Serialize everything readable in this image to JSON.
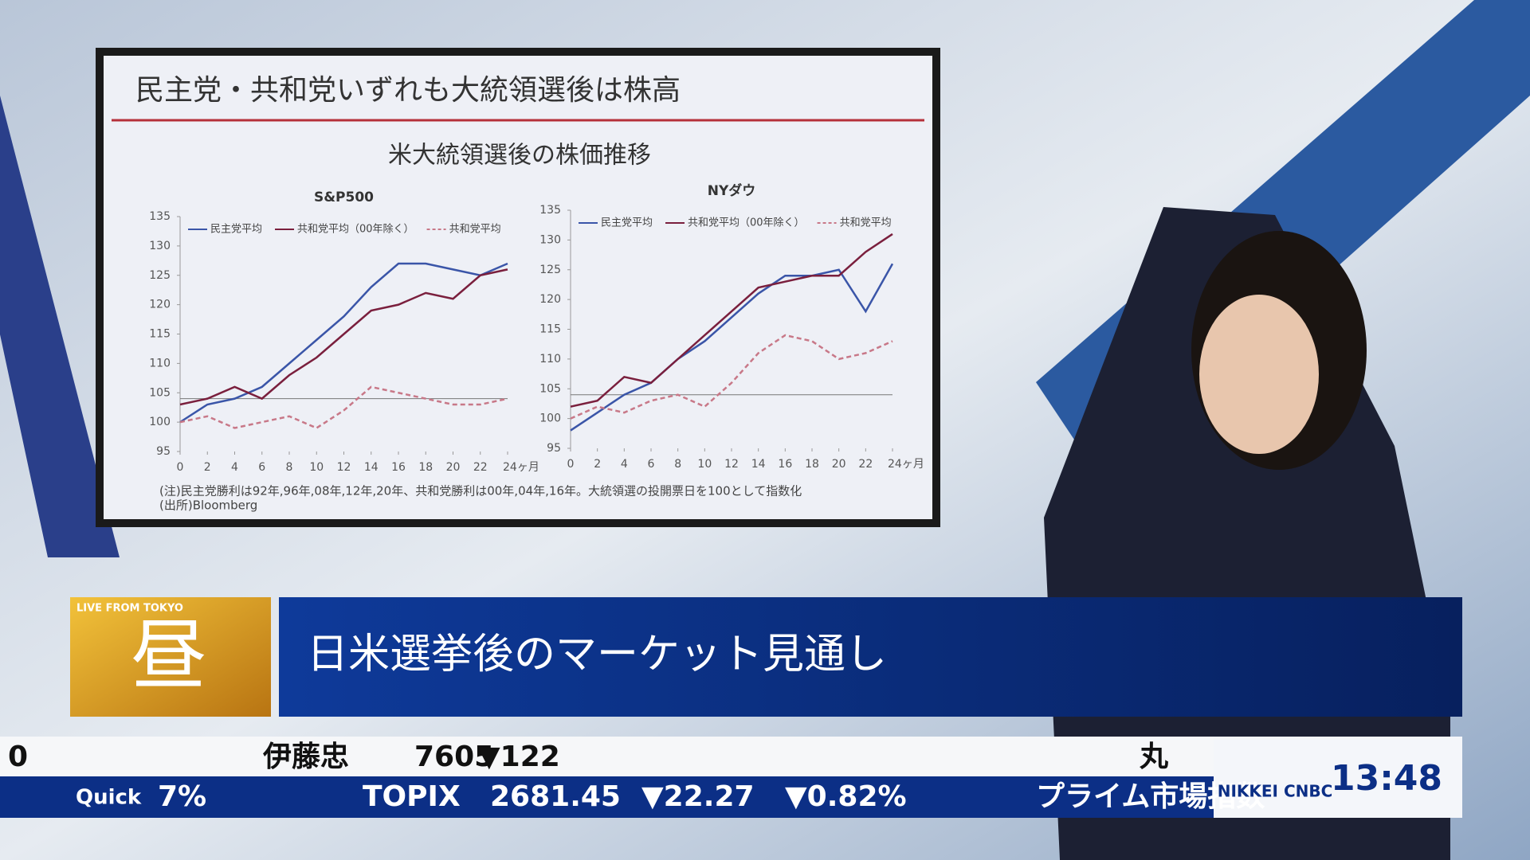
{
  "slide": {
    "title": "民主党・共和党いずれも大統領選後は株高",
    "subtitle": "米大統領選後の株価推移",
    "notes": [
      "(注)民主党勝利は92年,96年,08年,12年,20年、共和党勝利は00年,04年,16年。大統領選の投開票日を100として指数化",
      "(出所)Bloomberg"
    ]
  },
  "chart_data": [
    {
      "type": "line",
      "title": "S&P500",
      "x": [
        0,
        2,
        4,
        6,
        8,
        10,
        12,
        14,
        16,
        18,
        20,
        22,
        24
      ],
      "xlim": [
        0,
        24
      ],
      "xticks": [
        0,
        2,
        4,
        6,
        8,
        10,
        12,
        14,
        16,
        18,
        20,
        22,
        {
          "value": 24,
          "label": "24ヶ月"
        }
      ],
      "ylim": [
        95,
        135
      ],
      "yticks": [
        95,
        100,
        105,
        110,
        115,
        120,
        125,
        130,
        135
      ],
      "hline": 104,
      "series": [
        {
          "name": "民主党平均",
          "color": "#3a55a8",
          "values": [
            100,
            103,
            104,
            106,
            110,
            114,
            118,
            123,
            127,
            127,
            126,
            125,
            127
          ]
        },
        {
          "name": "共和党平均（00年除く）",
          "color": "#7a1f3d",
          "values": [
            103,
            104,
            106,
            104,
            108,
            111,
            115,
            119,
            120,
            122,
            121,
            125,
            126
          ]
        },
        {
          "name": "共和党平均",
          "color": "#c87888",
          "dashed": true,
          "values": [
            100,
            101,
            99,
            100,
            101,
            99,
            102,
            106,
            105,
            104,
            103,
            103,
            104
          ]
        }
      ]
    },
    {
      "type": "line",
      "title": "NYダウ",
      "x": [
        0,
        2,
        4,
        6,
        8,
        10,
        12,
        14,
        16,
        18,
        20,
        22,
        24
      ],
      "xlim": [
        0,
        24
      ],
      "xticks": [
        0,
        2,
        4,
        6,
        8,
        10,
        12,
        14,
        16,
        18,
        20,
        22,
        {
          "value": 24,
          "label": "24ヶ月"
        }
      ],
      "ylim": [
        95,
        135
      ],
      "yticks": [
        95,
        100,
        105,
        110,
        115,
        120,
        125,
        130,
        135
      ],
      "hline": 104,
      "series": [
        {
          "name": "民主党平均",
          "color": "#3a55a8",
          "values": [
            98,
            101,
            104,
            106,
            110,
            113,
            117,
            121,
            124,
            124,
            125,
            118,
            126
          ]
        },
        {
          "name": "共和党平均（00年除く）",
          "color": "#7a1f3d",
          "values": [
            102,
            103,
            107,
            106,
            110,
            114,
            118,
            122,
            123,
            124,
            124,
            128,
            131
          ]
        },
        {
          "name": "共和党平均",
          "color": "#c87888",
          "dashed": true,
          "values": [
            100,
            102,
            101,
            103,
            104,
            102,
            106,
            111,
            114,
            113,
            110,
            111,
            113
          ]
        }
      ]
    }
  ],
  "broadcast": {
    "live": "LIVE FROM TOKYO",
    "segment": "昼",
    "headline": "日米選挙後のマーケット見通し",
    "ticker_top": [
      "0",
      "伊藤忠",
      "7605",
      "▼122",
      "丸"
    ],
    "ticker_bottom": [
      "Quick",
      "7%",
      "TOPIX",
      "2681.45",
      "▼22.27",
      "▼0.82%",
      "プライム市場指数"
    ],
    "logo": "NIKKEI CNBC",
    "clock": "13:48"
  }
}
